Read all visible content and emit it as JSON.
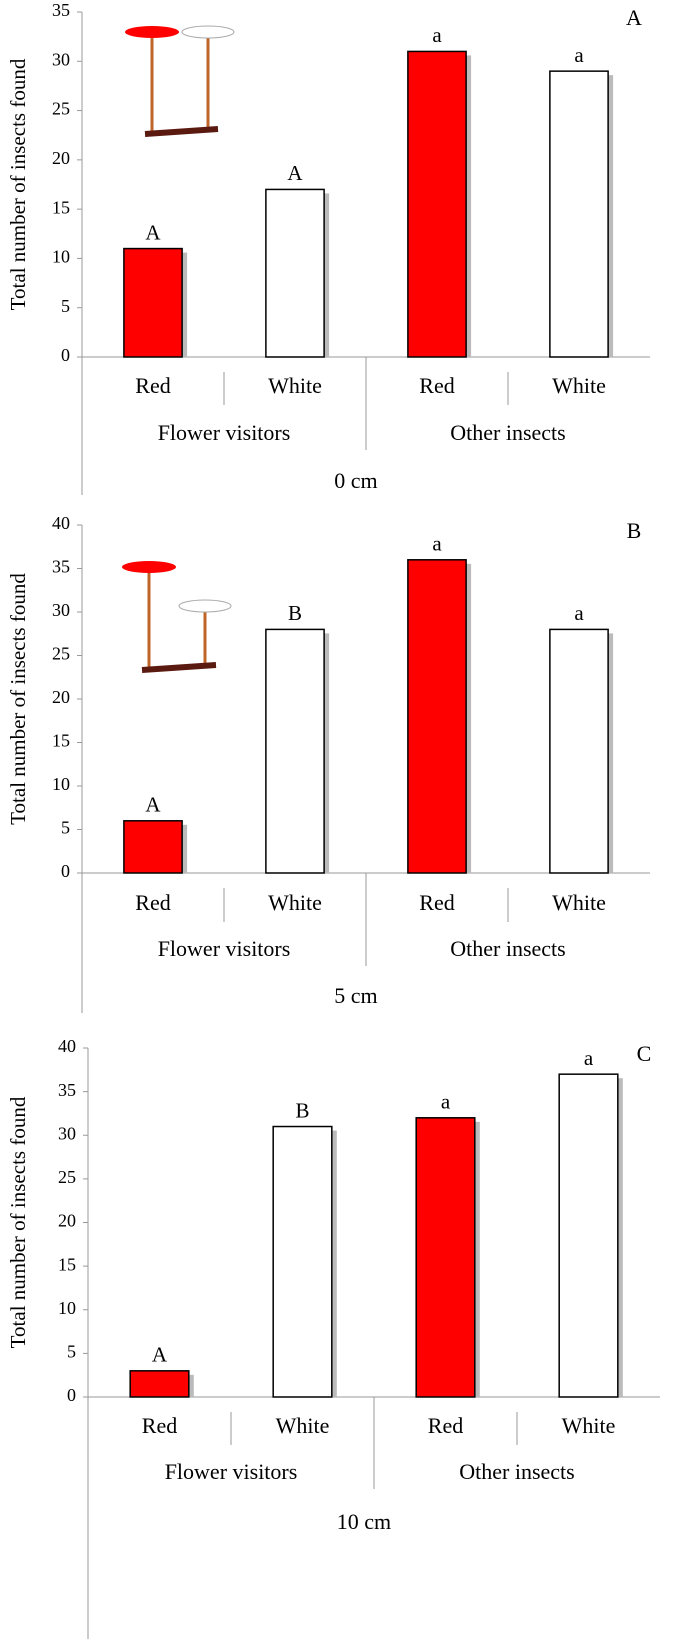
{
  "chart_data": [
    {
      "type": "bar",
      "panel_label": "A",
      "ylabel": "Total number of insects found",
      "xlabel": "0 cm",
      "groups": [
        "Flower visitors",
        "Other insects"
      ],
      "categories": [
        "Red",
        "White",
        "Red",
        "White"
      ],
      "values": [
        11,
        17,
        31,
        29
      ],
      "annotations": [
        "A",
        "A",
        "a",
        "a"
      ],
      "colors": [
        "#ff0000",
        "#ffffff",
        "#ff0000",
        "#ffffff"
      ],
      "ylim": [
        0,
        35
      ],
      "yticks": [
        0,
        5,
        10,
        15,
        20,
        25,
        30,
        35
      ]
    },
    {
      "type": "bar",
      "panel_label": "B",
      "ylabel": "Total number of insects found",
      "xlabel": "5 cm",
      "groups": [
        "Flower visitors",
        "Other insects"
      ],
      "categories": [
        "Red",
        "White",
        "Red",
        "White"
      ],
      "values": [
        6,
        28,
        36,
        28
      ],
      "annotations": [
        "A",
        "B",
        "a",
        "a"
      ],
      "colors": [
        "#ff0000",
        "#ffffff",
        "#ff0000",
        "#ffffff"
      ],
      "ylim": [
        0,
        40
      ],
      "yticks": [
        0,
        5,
        10,
        15,
        20,
        25,
        30,
        35,
        40
      ]
    },
    {
      "type": "bar",
      "panel_label": "C",
      "ylabel": "Total number of insects found",
      "xlabel": "10 cm",
      "groups": [
        "Flower visitors",
        "Other insects"
      ],
      "categories": [
        "Red",
        "White",
        "Red",
        "White"
      ],
      "values": [
        3,
        31,
        32,
        37
      ],
      "annotations": [
        "A",
        "B",
        "a",
        "a"
      ],
      "colors": [
        "#ff0000",
        "#ffffff",
        "#ff0000",
        "#ffffff"
      ],
      "ylim": [
        0,
        40
      ],
      "yticks": [
        0,
        5,
        10,
        15,
        20,
        25,
        30,
        35,
        40
      ]
    }
  ]
}
